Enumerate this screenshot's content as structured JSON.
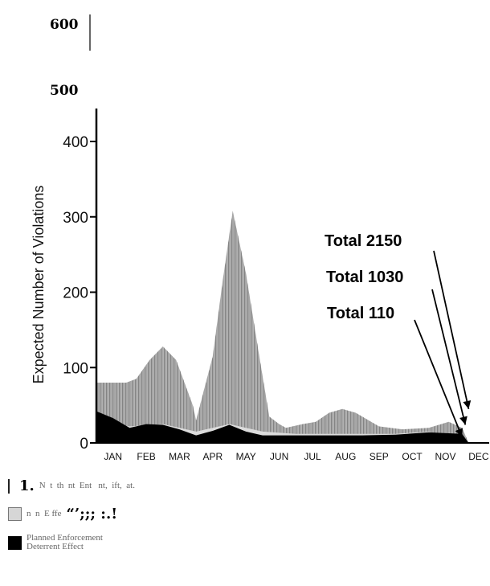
{
  "chart_data": {
    "type": "area",
    "ylabel": "Expected Number of Violations",
    "ylim": [
      0,
      600
    ],
    "y_ticks": [
      {
        "value": 0,
        "label": "0",
        "bold": false
      },
      {
        "value": 100,
        "label": "100",
        "bold": false
      },
      {
        "value": 200,
        "label": "200",
        "bold": false
      },
      {
        "value": 300,
        "label": "300",
        "bold": false
      },
      {
        "value": 400,
        "label": "400",
        "bold": false
      },
      {
        "value": 500,
        "label": "500",
        "bold": true
      },
      {
        "value": 600,
        "label": "600",
        "bold": true
      }
    ],
    "categories": [
      "JAN",
      "FEB",
      "MAR",
      "APR",
      "MAY",
      "JUN",
      "JUL",
      "AUG",
      "SEP",
      "OCT",
      "NOV",
      "DEC"
    ],
    "series": [
      {
        "style": "hatched",
        "color": "#9a9a9a",
        "x": [
          0,
          0.1,
          0.9,
          1.2,
          1.6,
          2.0,
          2.4,
          2.9,
          3.0,
          3.5,
          3.8,
          4.1,
          4.5,
          4.9,
          5.2,
          5.5,
          5.7,
          6.2,
          6.6,
          7.0,
          7.4,
          7.8,
          8.5,
          9.2,
          10.0,
          10.6,
          11.0,
          11.2
        ],
        "y": [
          80,
          80,
          80,
          85,
          110,
          128,
          110,
          50,
          30,
          115,
          215,
          308,
          225,
          115,
          35,
          25,
          20,
          25,
          28,
          40,
          45,
          40,
          22,
          18,
          20,
          28,
          20,
          0
        ]
      },
      {
        "style": "light",
        "color": "#dddddd",
        "x": [
          0,
          1,
          2,
          3,
          4,
          5,
          6,
          7,
          8,
          9,
          10,
          11.2
        ],
        "y": [
          30,
          22,
          25,
          15,
          25,
          15,
          12,
          12,
          12,
          12,
          15,
          0
        ]
      },
      {
        "style": "dark",
        "color": "#000000",
        "x": [
          0,
          0.5,
          1,
          1.5,
          2,
          2.5,
          3,
          3.5,
          4,
          4.5,
          5,
          6,
          7,
          8,
          9,
          10,
          11,
          11.2
        ],
        "y": [
          42,
          33,
          20,
          25,
          24,
          18,
          10,
          16,
          24,
          15,
          10,
          10,
          10,
          10,
          11,
          14,
          12,
          0
        ]
      }
    ],
    "annotations": [
      {
        "text": "Total 2150",
        "target_x": 11.2,
        "target_y": 45
      },
      {
        "text": "Total 1030",
        "target_x": 11.1,
        "target_y": 24
      },
      {
        "text": "Total 110",
        "target_x": 11.0,
        "target_y": 8
      }
    ]
  },
  "legend": {
    "items": [
      {
        "text": "1.",
        "sub": "N  t  th  nt  Ent   nt,  ift,  at."
      },
      {
        "text": "“’;;; :.!",
        "sub": "n  n  E ffe"
      },
      {
        "text": "",
        "sub": "Planned Enforcement\nDeterrent Effect"
      }
    ]
  }
}
